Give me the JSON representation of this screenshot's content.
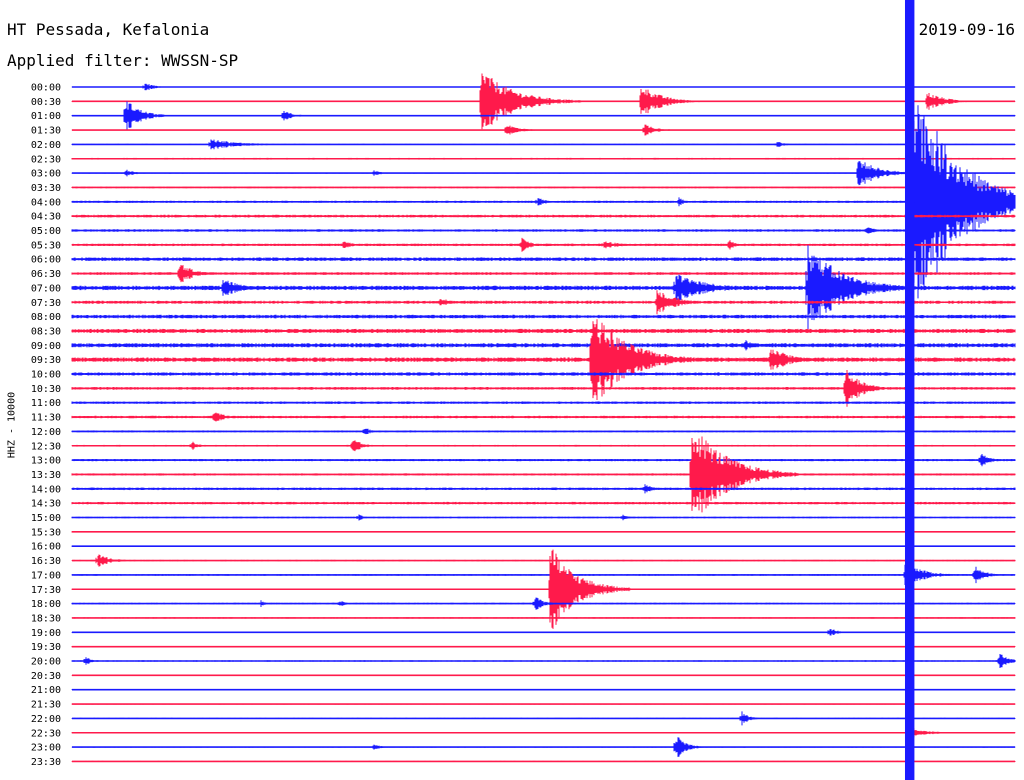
{
  "header": {
    "station": "HT Pessada, Kefalonia",
    "filter": "Applied filter: WWSSN-SP",
    "date": "2019-09-16"
  },
  "chart_data": {
    "type": "line",
    "title": "HT Pessada, Kefalonia",
    "subtitle": "Applied filter: WWSSN-SP",
    "ylabel": "HHZ - 10000",
    "xlabel": "",
    "colors": [
      "#1a1aff",
      "#ff1a4b"
    ],
    "grid": false,
    "rows": [
      "00:00",
      "00:30",
      "01:00",
      "01:30",
      "02:00",
      "02:30",
      "03:00",
      "03:30",
      "04:00",
      "04:30",
      "05:00",
      "05:30",
      "06:00",
      "06:30",
      "07:00",
      "07:30",
      "08:00",
      "08:30",
      "09:00",
      "09:30",
      "10:00",
      "10:30",
      "11:00",
      "11:30",
      "12:00",
      "12:30",
      "13:00",
      "13:30",
      "14:00",
      "14:30",
      "15:00",
      "15:30",
      "16:00",
      "16:30",
      "17:00",
      "17:30",
      "18:00",
      "18:30",
      "19:00",
      "19:30",
      "20:00",
      "20:30",
      "21:00",
      "21:30",
      "22:00",
      "22:30",
      "23:00",
      "23:30"
    ],
    "x_range": [
      0,
      30
    ],
    "x_unit": "minutes within row",
    "noise_level": [
      0.3,
      0.3,
      0.4,
      0.3,
      0.4,
      0.6,
      0.4,
      0.6,
      0.8,
      1.0,
      0.9,
      0.9,
      1.3,
      1.0,
      1.6,
      1.1,
      1.3,
      1.5,
      1.5,
      1.6,
      1.2,
      1.0,
      0.9,
      0.9,
      0.7,
      0.6,
      0.8,
      0.8,
      0.9,
      0.9,
      0.6,
      0.5,
      0.5,
      0.5,
      0.6,
      0.5,
      0.6,
      0.5,
      0.4,
      0.4,
      0.5,
      0.4,
      0.4,
      0.4,
      0.4,
      0.4,
      0.4,
      0.4
    ],
    "events": [
      {
        "row": "00:00",
        "minute": 2.3,
        "amplitude": 5,
        "duration": 1.0
      },
      {
        "row": "00:30",
        "minute": 13.0,
        "amplitude": 34,
        "duration": 3.2
      },
      {
        "row": "00:30",
        "minute": 18.1,
        "amplitude": 18,
        "duration": 2.0
      },
      {
        "row": "00:30",
        "minute": 27.2,
        "amplitude": 10,
        "duration": 1.8
      },
      {
        "row": "01:00",
        "minute": 1.7,
        "amplitude": 18,
        "duration": 1.5
      },
      {
        "row": "01:00",
        "minute": 6.7,
        "amplitude": 6,
        "duration": 1.0
      },
      {
        "row": "01:30",
        "minute": 13.8,
        "amplitude": 7,
        "duration": 1.2
      },
      {
        "row": "01:30",
        "minute": 18.2,
        "amplitude": 7,
        "duration": 1.2
      },
      {
        "row": "02:00",
        "minute": 4.4,
        "amplitude": 6,
        "duration": 2.8
      },
      {
        "row": "02:00",
        "minute": 22.4,
        "amplitude": 4,
        "duration": 0.8
      },
      {
        "row": "03:00",
        "minute": 1.7,
        "amplitude": 4,
        "duration": 1.0
      },
      {
        "row": "03:00",
        "minute": 9.6,
        "amplitude": 4,
        "duration": 0.6
      },
      {
        "row": "03:00",
        "minute": 25.0,
        "amplitude": 16,
        "duration": 2.0
      },
      {
        "row": "04:00",
        "minute": 14.8,
        "amplitude": 5,
        "duration": 1.0
      },
      {
        "row": "04:00",
        "minute": 19.3,
        "amplitude": 5,
        "duration": 0.6
      },
      {
        "row": "05:00",
        "minute": 25.3,
        "amplitude": 7,
        "duration": 0.6
      },
      {
        "row": "05:30",
        "minute": 8.6,
        "amplitude": 5,
        "duration": 1.0
      },
      {
        "row": "05:30",
        "minute": 14.3,
        "amplitude": 9,
        "duration": 0.8
      },
      {
        "row": "05:30",
        "minute": 16.9,
        "amplitude": 4,
        "duration": 2.0
      },
      {
        "row": "05:30",
        "minute": 20.9,
        "amplitude": 6,
        "duration": 0.6
      },
      {
        "row": "06:30",
        "minute": 3.4,
        "amplitude": 12,
        "duration": 1.4
      },
      {
        "row": "07:00",
        "minute": 4.8,
        "amplitude": 10,
        "duration": 1.8
      },
      {
        "row": "07:00",
        "minute": 19.2,
        "amplitude": 16,
        "duration": 3.0
      },
      {
        "row": "07:00",
        "minute": 23.4,
        "amplitude": 46,
        "duration": 3.5
      },
      {
        "row": "07:30",
        "minute": 18.6,
        "amplitude": 14,
        "duration": 1.8
      },
      {
        "row": "07:30",
        "minute": 11.7,
        "amplitude": 4,
        "duration": 1.8
      },
      {
        "row": "09:30",
        "minute": 16.5,
        "amplitude": 52,
        "duration": 3.6
      },
      {
        "row": "09:30",
        "minute": 22.2,
        "amplitude": 14,
        "duration": 2.0
      },
      {
        "row": "09:00",
        "minute": 21.4,
        "amplitude": 6,
        "duration": 1.0
      },
      {
        "row": "10:30",
        "minute": 24.6,
        "amplitude": 22,
        "duration": 1.5
      },
      {
        "row": "11:30",
        "minute": 4.5,
        "amplitude": 7,
        "duration": 1.0
      },
      {
        "row": "12:00",
        "minute": 9.3,
        "amplitude": 5,
        "duration": 0.6
      },
      {
        "row": "12:30",
        "minute": 3.8,
        "amplitude": 5,
        "duration": 0.8
      },
      {
        "row": "12:30",
        "minute": 8.9,
        "amplitude": 8,
        "duration": 1.0
      },
      {
        "row": "13:00",
        "minute": 28.9,
        "amplitude": 9,
        "duration": 0.8
      },
      {
        "row": "13:30",
        "minute": 19.7,
        "amplitude": 56,
        "duration": 3.4
      },
      {
        "row": "14:00",
        "minute": 18.2,
        "amplitude": 6,
        "duration": 0.8
      },
      {
        "row": "15:00",
        "minute": 9.1,
        "amplitude": 4,
        "duration": 0.6
      },
      {
        "row": "15:00",
        "minute": 17.5,
        "amplitude": 4,
        "duration": 0.6
      },
      {
        "row": "16:30",
        "minute": 0.8,
        "amplitude": 7,
        "duration": 1.4
      },
      {
        "row": "17:00",
        "minute": 26.5,
        "amplitude": 14,
        "duration": 1.8
      },
      {
        "row": "17:00",
        "minute": 28.7,
        "amplitude": 10,
        "duration": 1.0
      },
      {
        "row": "17:30",
        "minute": 15.2,
        "amplitude": 46,
        "duration": 2.6
      },
      {
        "row": "18:00",
        "minute": 14.7,
        "amplitude": 8,
        "duration": 1.0
      },
      {
        "row": "18:00",
        "minute": 6.0,
        "amplitude": 4,
        "duration": 0.6
      },
      {
        "row": "18:00",
        "minute": 8.5,
        "amplitude": 4,
        "duration": 0.6
      },
      {
        "row": "19:00",
        "minute": 24.1,
        "amplitude": 5,
        "duration": 0.8
      },
      {
        "row": "20:00",
        "minute": 0.4,
        "amplitude": 5,
        "duration": 0.8
      },
      {
        "row": "20:00",
        "minute": 29.5,
        "amplitude": 9,
        "duration": 1.0
      },
      {
        "row": "22:00",
        "minute": 21.3,
        "amplitude": 8,
        "duration": 0.8
      },
      {
        "row": "22:30",
        "minute": 26.7,
        "amplitude": 6,
        "duration": 1.6
      },
      {
        "row": "23:00",
        "minute": 19.2,
        "amplitude": 14,
        "duration": 1.0
      },
      {
        "row": "23:00",
        "minute": 9.6,
        "amplitude": 4,
        "duration": 0.6
      }
    ],
    "saturated_band": {
      "row_start": "00:00",
      "row_end": "23:30",
      "minute_start": 26.5,
      "minute_end": 26.8,
      "color": "#1a1aff"
    },
    "major_event": {
      "row": "04:00",
      "minute": 26.6,
      "amplitude": 140,
      "duration": 4.5
    }
  }
}
